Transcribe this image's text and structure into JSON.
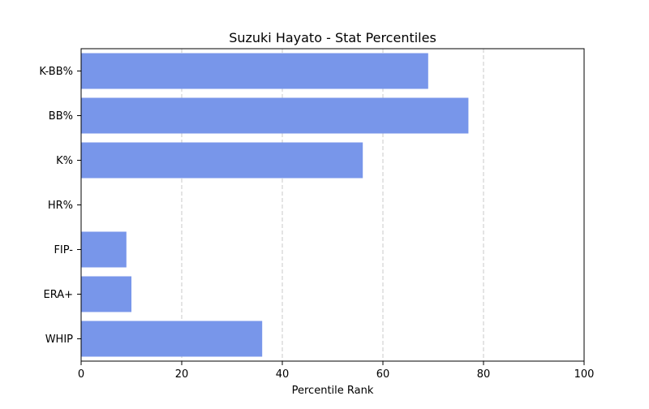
{
  "chart_data": {
    "type": "bar",
    "orientation": "horizontal",
    "title": "Suzuki Hayato - Stat Percentiles",
    "xlabel": "Percentile Rank",
    "ylabel": "",
    "xlim": [
      0,
      100
    ],
    "xticks": [
      0,
      20,
      40,
      60,
      80,
      100
    ],
    "grid": "x-dashed",
    "categories": [
      "K-BB%",
      "BB%",
      "K%",
      "HR%",
      "FIP-",
      "ERA+",
      "WHIP"
    ],
    "values": [
      69,
      77,
      56,
      0,
      9,
      10,
      36
    ],
    "bar_color": "#7896ea",
    "grid_color": "#c8c8c8"
  }
}
